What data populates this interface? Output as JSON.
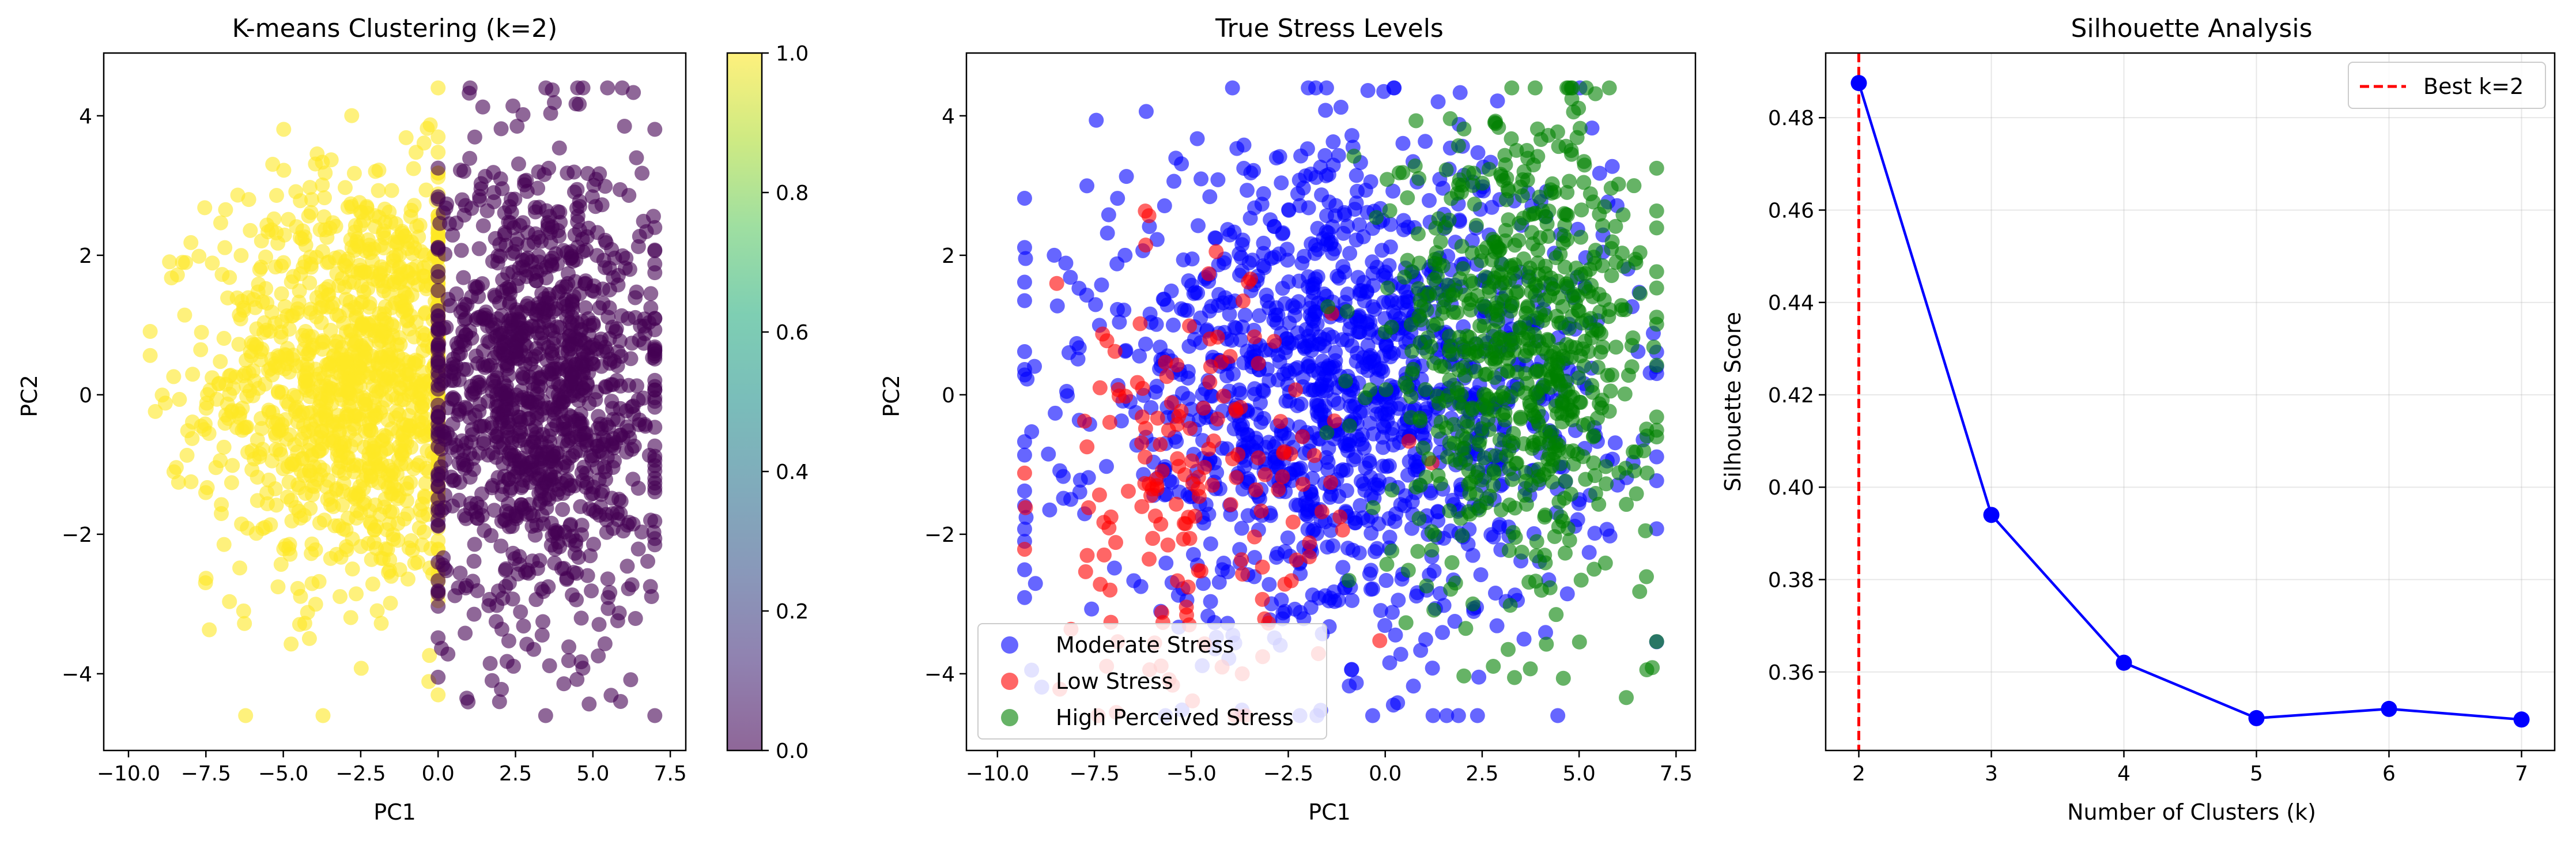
{
  "chart_data": [
    {
      "type": "scatter",
      "title": "K-means Clustering (k=2)",
      "xlabel": "PC1",
      "ylabel": "PC2",
      "xlim": [
        -10.8,
        8.0
      ],
      "ylim": [
        -5.1,
        4.9
      ],
      "xticks": [
        -10.0,
        -7.5,
        -5.0,
        -2.5,
        0.0,
        2.5,
        5.0,
        7.5
      ],
      "xtick_labels": [
        "−10.0",
        "−7.5",
        "−5.0",
        "−2.5",
        "0.0",
        "2.5",
        "5.0",
        "7.5"
      ],
      "yticks": [
        -4,
        -2,
        0,
        2,
        4
      ],
      "ytick_labels": [
        "−4",
        "−2",
        "0",
        "2",
        "4"
      ],
      "grid": false,
      "colorbar": {
        "min": 0.0,
        "max": 1.0,
        "ticks": [
          0.0,
          0.2,
          0.4,
          0.6,
          0.8,
          1.0
        ],
        "tick_labels": [
          "0.0",
          "0.2",
          "0.4",
          "0.6",
          "0.8",
          "1.0"
        ],
        "colormap": "viridis"
      },
      "series": [
        {
          "cluster": 1,
          "color": "#fde725",
          "count": 1250,
          "x_range": [
            -9.3,
            0.0
          ],
          "x_center": -2.5,
          "x_spread": 2.4,
          "y_center": 0.2,
          "y_spread": 1.5
        },
        {
          "cluster": 0,
          "color": "#440154",
          "count": 1200,
          "x_range": [
            0.0,
            7.0
          ],
          "x_center": 3.3,
          "x_spread": 2.0,
          "y_center": 0.1,
          "y_spread": 1.7
        }
      ]
    },
    {
      "type": "scatter",
      "title": "True Stress Levels",
      "xlabel": "PC1",
      "ylabel": "PC2",
      "xlim": [
        -10.8,
        8.0
      ],
      "ylim": [
        -5.1,
        4.9
      ],
      "xticks": [
        -10.0,
        -7.5,
        -5.0,
        -2.5,
        0.0,
        2.5,
        5.0,
        7.5
      ],
      "xtick_labels": [
        "−10.0",
        "−7.5",
        "−5.0",
        "−2.5",
        "0.0",
        "2.5",
        "5.0",
        "7.5"
      ],
      "yticks": [
        -4,
        -2,
        0,
        2,
        4
      ],
      "ytick_labels": [
        "−4",
        "−2",
        "0",
        "2",
        "4"
      ],
      "grid": false,
      "legend_position": "lower-left",
      "series": [
        {
          "name": "Moderate Stress",
          "color": "#0000ff",
          "count": 1400,
          "x_center": -1.0,
          "x_spread": 3.3,
          "y_center": 0.0,
          "y_spread": 1.7
        },
        {
          "name": "Low Stress",
          "color": "#ff0000",
          "count": 170,
          "x_center": -5.0,
          "x_spread": 1.9,
          "y_center": -1.5,
          "y_spread": 1.5
        },
        {
          "name": "High Perceived Stress",
          "color": "#008000",
          "count": 700,
          "x_center": 3.5,
          "x_spread": 1.7,
          "y_center": 0.7,
          "y_spread": 1.7
        }
      ]
    },
    {
      "type": "line",
      "title": "Silhouette Analysis",
      "xlabel": "Number of Clusters (k)",
      "ylabel": "Silhouette Score",
      "xlim": [
        1.75,
        7.25
      ],
      "ylim": [
        0.343,
        0.494
      ],
      "xticks": [
        2,
        3,
        4,
        5,
        6,
        7
      ],
      "xtick_labels": [
        "2",
        "3",
        "4",
        "5",
        "6",
        "7"
      ],
      "yticks": [
        0.36,
        0.38,
        0.4,
        0.42,
        0.44,
        0.46,
        0.48
      ],
      "ytick_labels": [
        "0.36",
        "0.38",
        "0.40",
        "0.42",
        "0.44",
        "0.46",
        "0.48"
      ],
      "grid": true,
      "legend_position": "top-right",
      "x": [
        2,
        3,
        4,
        5,
        6,
        7
      ],
      "series": [
        {
          "values": [
            0.4875,
            0.394,
            0.362,
            0.35,
            0.352,
            0.3497
          ],
          "color": "#0000ff"
        }
      ],
      "reference_line": {
        "x": 2,
        "label": "Best k=2",
        "color": "#ff0000",
        "style": "dashed"
      }
    }
  ]
}
